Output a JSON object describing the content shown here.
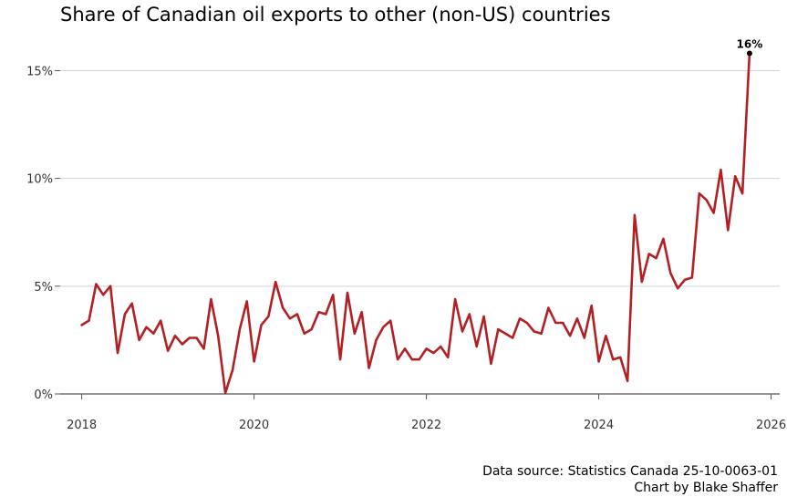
{
  "chart_data": {
    "type": "line",
    "title": "Share of Canadian oil exports to other (non-US) countries",
    "xlabel": "",
    "ylabel": "",
    "x_ticks": [
      {
        "value": 2018,
        "label": "2018"
      },
      {
        "value": 2020,
        "label": "2020"
      },
      {
        "value": 2022,
        "label": "2022"
      },
      {
        "value": 2024,
        "label": "2024"
      },
      {
        "value": 2026,
        "label": "2026"
      }
    ],
    "y_ticks": [
      {
        "value": 0,
        "label": "0%"
      },
      {
        "value": 5,
        "label": "5%"
      },
      {
        "value": 10,
        "label": "10%"
      },
      {
        "value": 15,
        "label": "15%"
      }
    ],
    "xlim": [
      2017.75,
      2026.1
    ],
    "ylim": [
      0,
      16.5
    ],
    "line_color": "#b22024",
    "grid": "horizontal",
    "series": [
      {
        "x_start": "2018-01",
        "frequency": "monthly",
        "values": [
          3.2,
          3.4,
          5.1,
          4.6,
          5.0,
          1.9,
          3.7,
          4.2,
          2.5,
          3.1,
          2.8,
          3.4,
          2.0,
          2.7,
          2.3,
          2.6,
          2.6,
          2.1,
          4.4,
          2.7,
          0.05,
          1.1,
          3.0,
          4.3,
          1.5,
          3.2,
          3.6,
          5.2,
          4.0,
          3.5,
          3.7,
          2.8,
          3.0,
          3.8,
          3.7,
          4.6,
          1.6,
          4.7,
          2.8,
          3.8,
          1.2,
          2.5,
          3.1,
          3.4,
          1.6,
          2.1,
          1.6,
          1.6,
          2.1,
          1.9,
          2.2,
          1.7,
          4.4,
          2.9,
          3.7,
          2.2,
          3.6,
          1.4,
          3.0,
          2.8,
          2.6,
          3.5,
          3.3,
          2.9,
          2.8,
          4.0,
          3.3,
          3.3,
          2.7,
          3.5,
          2.6,
          4.1,
          1.5,
          2.7,
          1.6,
          1.7,
          0.6,
          8.3,
          5.2,
          6.5,
          6.3,
          7.2,
          5.6,
          4.9,
          5.3,
          5.4,
          9.3,
          9.0,
          8.4,
          10.4,
          7.6,
          10.1,
          9.3,
          15.8
        ]
      }
    ],
    "annotations": [
      {
        "text": "16%",
        "x": "2025-10",
        "y": 15.8
      }
    ]
  },
  "source_line1": "Data source: Statistics Canada 25-10-0063-01",
  "source_line2": "Chart by Blake Shaffer"
}
